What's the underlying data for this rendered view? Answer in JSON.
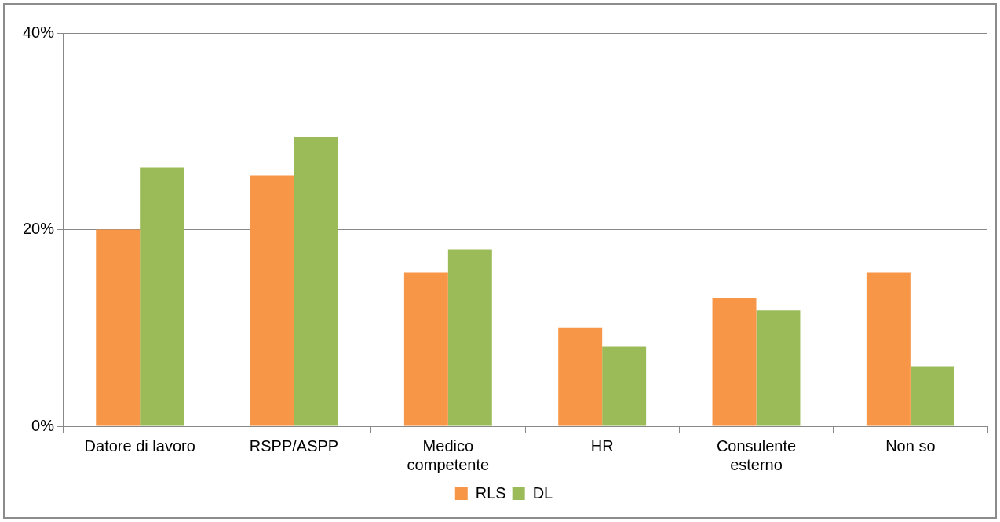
{
  "chart_data": {
    "type": "bar",
    "categories": [
      "Datore di lavoro",
      "RSPP/ASPP",
      "Medico competente",
      "HR",
      "Consulente esterno",
      "Non so"
    ],
    "series": [
      {
        "name": "RLS",
        "color": "#f79646",
        "values": [
          20.0,
          25.5,
          15.6,
          10.0,
          13.1,
          15.6
        ]
      },
      {
        "name": "DL",
        "color": "#9bbb59",
        "values": [
          26.3,
          29.4,
          18.0,
          8.1,
          11.8,
          6.1
        ]
      }
    ],
    "ylim": [
      0,
      40
    ],
    "yticks": [
      {
        "value": 0,
        "label": "0%"
      },
      {
        "value": 20,
        "label": "20%"
      },
      {
        "value": 40,
        "label": "40%"
      }
    ],
    "grid": "y",
    "legend": "bottom"
  }
}
